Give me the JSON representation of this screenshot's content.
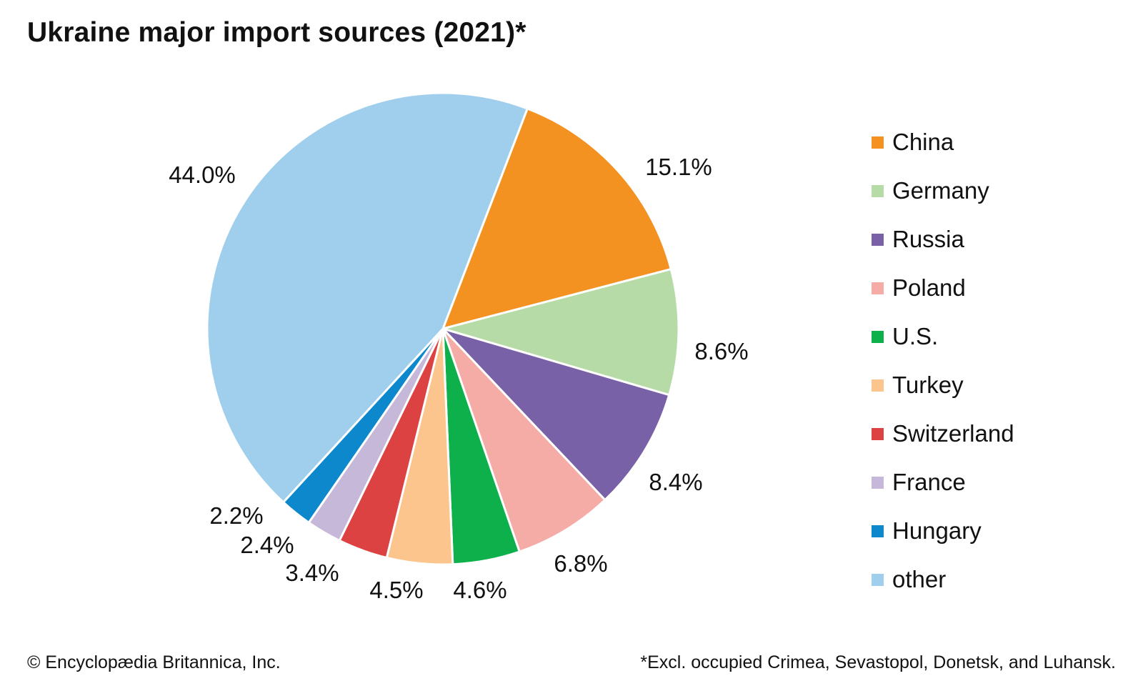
{
  "chart_data": {
    "type": "pie",
    "title": "Ukraine major import sources (2021)*",
    "categories": [
      "China",
      "Germany",
      "Russia",
      "Poland",
      "U.S.",
      "Turkey",
      "Switzerland",
      "France",
      "Hungary",
      "other"
    ],
    "values": [
      15.1,
      8.6,
      8.4,
      6.8,
      4.6,
      4.5,
      3.4,
      2.4,
      2.2,
      44.0
    ],
    "data_labels": [
      "15.1%",
      "8.6%",
      "8.4%",
      "6.8%",
      "4.6%",
      "4.5%",
      "3.4%",
      "2.4%",
      "2.2%",
      "44.0%"
    ],
    "colors": [
      "#f39121",
      "#b6dba7",
      "#7961a8",
      "#f6aca6",
      "#0db04b",
      "#fcc58d",
      "#dd4243",
      "#c6b8d9",
      "#0e88cc",
      "#9fcfed"
    ],
    "legend_position": "right",
    "start": "top-right, clockwise"
  },
  "legend": [
    {
      "label": "China",
      "color": "#f39121"
    },
    {
      "label": "Germany",
      "color": "#b6dba7"
    },
    {
      "label": "Russia",
      "color": "#7961a8"
    },
    {
      "label": "Poland",
      "color": "#f6aca6"
    },
    {
      "label": "U.S.",
      "color": "#0db04b"
    },
    {
      "label": "Turkey",
      "color": "#fcc58d"
    },
    {
      "label": "Switzerland",
      "color": "#dd4243"
    },
    {
      "label": "France",
      "color": "#c6b8d9"
    },
    {
      "label": "Hungary",
      "color": "#0e88cc"
    },
    {
      "label": "other",
      "color": "#9fcfed"
    }
  ],
  "footer": {
    "copyright": "© Encyclopædia Britannica, Inc.",
    "note": "*Excl. occupied Crimea, Sevastopol, Donetsk, and Luhansk."
  }
}
